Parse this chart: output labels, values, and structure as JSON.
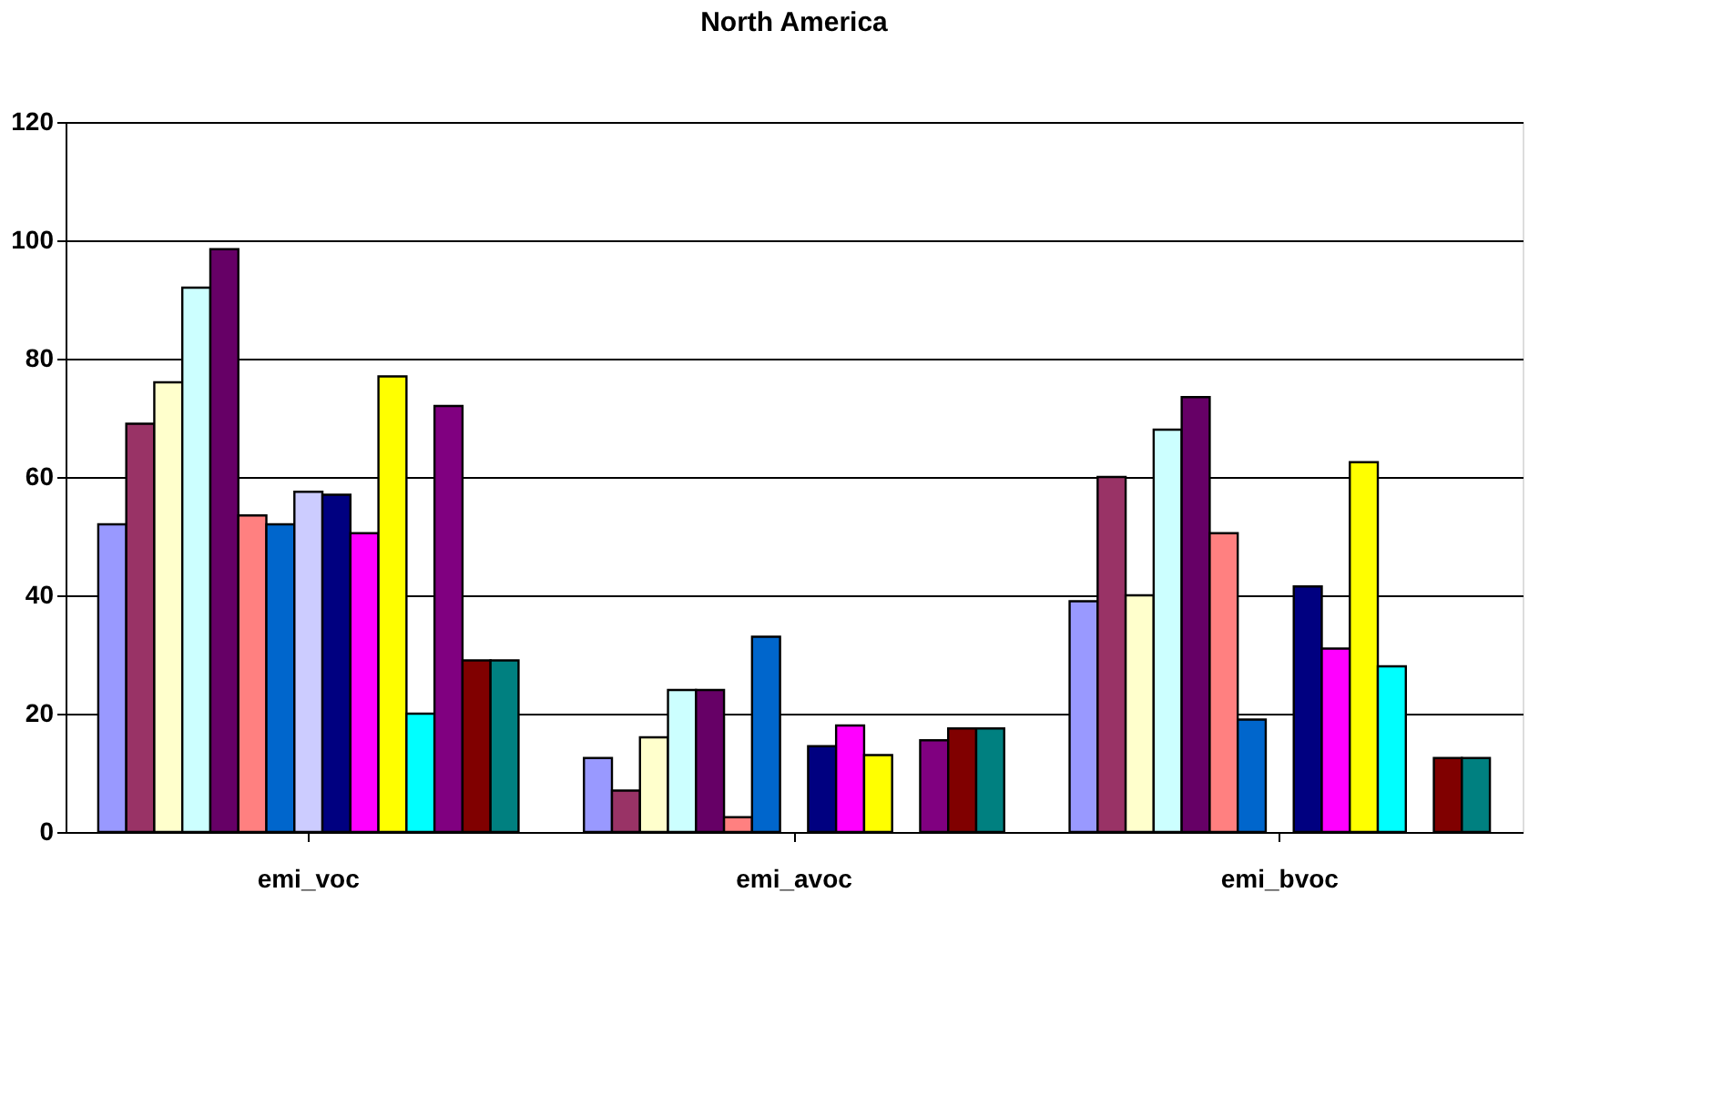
{
  "chart_data": {
    "type": "bar",
    "title": "North America",
    "categories": [
      "emi_voc",
      "emi_avoc",
      "emi_bvoc"
    ],
    "series": [
      {
        "color": "#9999ff",
        "values": [
          52,
          12.5,
          39
        ]
      },
      {
        "color": "#993366",
        "values": [
          69,
          7,
          60
        ]
      },
      {
        "color": "#ffffcc",
        "values": [
          76,
          16,
          40
        ]
      },
      {
        "color": "#ccffff",
        "values": [
          92,
          24,
          68
        ]
      },
      {
        "color": "#660066",
        "values": [
          98.5,
          24,
          73.5
        ]
      },
      {
        "color": "#ff8080",
        "values": [
          53.5,
          2.5,
          50.5
        ]
      },
      {
        "color": "#0066cc",
        "values": [
          52,
          33,
          19
        ]
      },
      {
        "color": "#ccccff",
        "values": [
          57.5,
          null,
          null
        ]
      },
      {
        "color": "#000080",
        "values": [
          57,
          14.5,
          41.5
        ]
      },
      {
        "color": "#ff00ff",
        "values": [
          50.5,
          18,
          31
        ]
      },
      {
        "color": "#ffff00",
        "values": [
          77,
          13,
          62.5
        ]
      },
      {
        "color": "#00ffff",
        "values": [
          20,
          null,
          28
        ]
      },
      {
        "color": "#800080",
        "values": [
          72,
          15.5,
          null
        ]
      },
      {
        "color": "#800000",
        "values": [
          29,
          17.5,
          12.5
        ]
      },
      {
        "color": "#008080",
        "values": [
          29,
          17.5,
          12.5
        ]
      }
    ],
    "ylim": [
      0,
      120
    ],
    "yticks": [
      0,
      20,
      40,
      60,
      80,
      100,
      120
    ],
    "grid": "y"
  }
}
